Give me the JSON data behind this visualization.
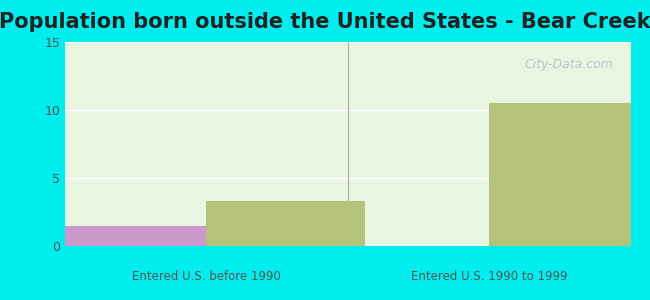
{
  "title": "Population born outside the United States - Bear Creek",
  "groups": [
    "Entered U.S. before 1990",
    "Entered U.S. 1990 to 1999"
  ],
  "series": {
    "Native": [
      1.5,
      0
    ],
    "Foreign-born": [
      3.3,
      10.5
    ]
  },
  "colors": {
    "Native": "#cc99cc",
    "Foreign-born": "#b5c27a"
  },
  "ylim": [
    0,
    15
  ],
  "yticks": [
    0,
    5,
    10,
    15
  ],
  "background_outer": "#00eeee",
  "background_plot": "#e8f5e0",
  "bar_width": 0.28,
  "group_positions": [
    0.25,
    0.75
  ],
  "watermark": "City-Data.com",
  "title_fontsize": 15
}
